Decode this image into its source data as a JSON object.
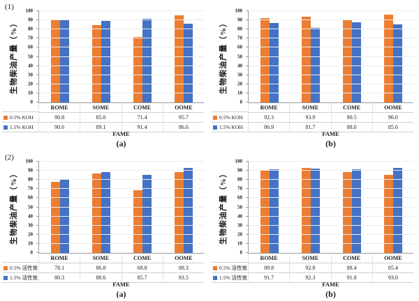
{
  "chart_data": [
    {
      "type": "bar",
      "group_label": "(1)",
      "panel_label": "(a)",
      "ylabel": "生物柴油产量（%）",
      "xlabel": "FAME",
      "ylim": [
        0,
        100
      ],
      "ytick_step": 10,
      "grid": true,
      "legend_position": "table-left",
      "categories": [
        "ROME",
        "SOME",
        "COME",
        "OOME"
      ],
      "series": [
        {
          "name": "0.5% KOH",
          "color": "#ED7D31",
          "values": [
            90.8,
            85.0,
            71.4,
            95.7
          ]
        },
        {
          "name": "1.5% KOH",
          "color": "#4472C4",
          "values": [
            90.6,
            89.1,
            91.4,
            86.6
          ]
        }
      ]
    },
    {
      "type": "bar",
      "group_label": "",
      "panel_label": "(b)",
      "ylabel": "生物柴油产量（%）",
      "xlabel": "FAME",
      "ylim": [
        0,
        100
      ],
      "ytick_step": 10,
      "grid": true,
      "legend_position": "table-left",
      "categories": [
        "ROME",
        "SOME",
        "COME",
        "OOME"
      ],
      "series": [
        {
          "name": "0.5% KOH",
          "color": "#ED7D31",
          "values": [
            92.3,
            93.9,
            90.5,
            96.0
          ]
        },
        {
          "name": "1.5% KOH",
          "color": "#4472C4",
          "values": [
            86.9,
            81.7,
            88.0,
            85.6
          ]
        }
      ]
    },
    {
      "type": "bar",
      "group_label": "(2)",
      "panel_label": "(a)",
      "ylabel": "生物柴油产量（%）",
      "xlabel": "FAME",
      "ylim": [
        0,
        100
      ],
      "ytick_step": 10,
      "grid": true,
      "legend_position": "table-left",
      "categories": [
        "ROME",
        "SOME",
        "COME",
        "OOME"
      ],
      "series": [
        {
          "name": "0.5% 活性炭",
          "color": "#ED7D31",
          "values": [
            78.1,
            86.8,
            68.8,
            88.3
          ]
        },
        {
          "name": "1.5% 活性炭",
          "color": "#4472C4",
          "values": [
            80.3,
            88.6,
            85.7,
            93.5
          ]
        }
      ]
    },
    {
      "type": "bar",
      "group_label": "",
      "panel_label": "(b)",
      "ylabel": "生物柴油产量（%）",
      "xlabel": "FAME",
      "ylim": [
        0,
        100
      ],
      "ytick_step": 10,
      "grid": true,
      "legend_position": "table-left",
      "categories": [
        "ROME",
        "SOME",
        "COME",
        "OOME"
      ],
      "series": [
        {
          "name": "0.5% 活性炭",
          "color": "#ED7D31",
          "values": [
            89.8,
            92.8,
            88.4,
            85.4
          ]
        },
        {
          "name": "1.5% 活性炭",
          "color": "#4472C4",
          "values": [
            91.7,
            92.3,
            91.8,
            93.0
          ]
        }
      ]
    }
  ]
}
